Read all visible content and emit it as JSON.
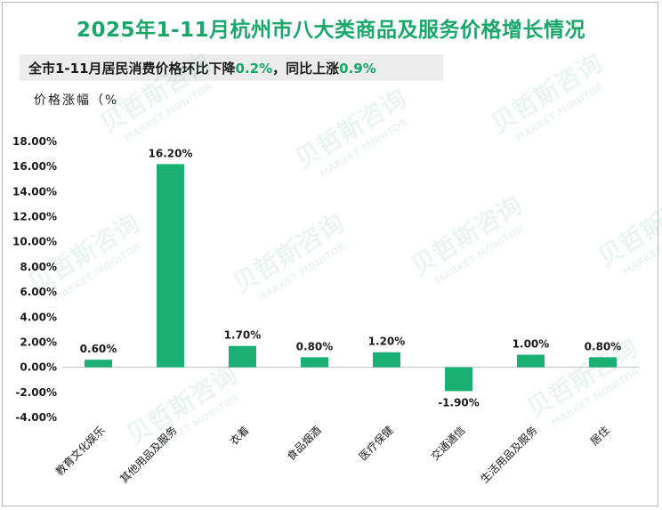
{
  "title": "2025年1-11月杭州市八大类商品及服务价格增长情况",
  "subtitle": {
    "part1": "全市1-11月居民消费价格环比下降",
    "value1": "0.2%",
    "part2": "，同比上涨",
    "value2": "0.9%"
  },
  "watermark": {
    "cn": "贝哲斯咨询",
    "en": "MARKET MONITOR"
  },
  "colors": {
    "bar": "#1aaf73",
    "title": "#19a86a",
    "text": "#1a1a1a",
    "axis": "#bfbfbf"
  },
  "chart_data": {
    "type": "bar",
    "ylabel": "价格涨幅（%",
    "ylim": [
      -4,
      18
    ],
    "yticks": [
      18,
      16,
      14,
      12,
      10,
      8,
      6,
      4,
      2,
      0,
      -2,
      -4
    ],
    "ytick_labels": [
      "18.00%",
      "16.00%",
      "14.00%",
      "12.00%",
      "10.00%",
      "8.00%",
      "6.00%",
      "4.00%",
      "2.00%",
      "0.00%",
      "-2.00%",
      "-4.00%"
    ],
    "categories": [
      "教育文化娱乐",
      "其他用品及服务",
      "衣着",
      "食品烟酒",
      "医疗保健",
      "交通通信",
      "生活用品及服务",
      "居住"
    ],
    "values": [
      0.6,
      16.2,
      1.7,
      0.8,
      1.2,
      -1.9,
      1.0,
      0.8
    ],
    "data_labels": [
      "0.60%",
      "16.20%",
      "1.70%",
      "0.80%",
      "1.20%",
      "-1.90%",
      "1.00%",
      "0.80%"
    ],
    "grid": false,
    "legend": "none"
  }
}
